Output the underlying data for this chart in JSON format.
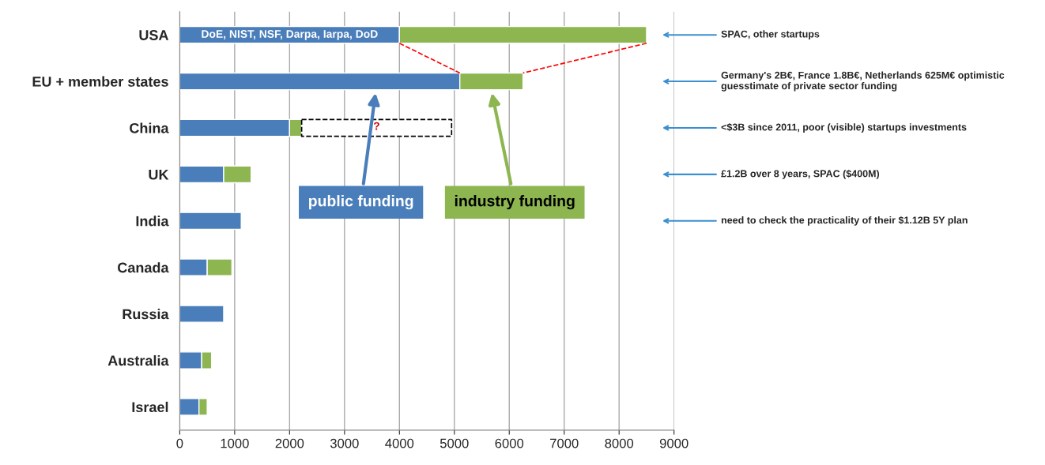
{
  "chart_data": {
    "type": "bar",
    "orientation": "horizontal",
    "stacked": true,
    "categories": [
      "USA",
      "EU + member states",
      "China",
      "UK",
      "India",
      "Canada",
      "Russia",
      "Australia",
      "Israel"
    ],
    "series": [
      {
        "name": "public funding",
        "color": "#4a7ebb",
        "values": [
          4000,
          5100,
          2000,
          800,
          1120,
          500,
          800,
          400,
          350
        ]
      },
      {
        "name": "industry funding",
        "color": "#8db651",
        "values": [
          4500,
          1150,
          220,
          500,
          null,
          450,
          null,
          180,
          150
        ]
      },
      {
        "color": "#ffffff",
        "line_style": "dashed",
        "values": [
          null,
          null,
          2730,
          null,
          null,
          null,
          null,
          null,
          null
        ]
      }
    ],
    "xlim": [
      0,
      9000
    ],
    "xticks": [
      0,
      1000,
      2000,
      3000,
      4000,
      5000,
      6000,
      7000,
      8000,
      9000
    ],
    "grid": "x",
    "legend": false,
    "annotations": [
      "DoE, NIST, NSF, Darpa, Iarpa, DoD",
      "?",
      "SPAC, other startups",
      "Germany's 2B€, France 1.8B€, Netherlands 625M€ optimistic guesstimate of private sector funding",
      "<$3B since 2011, poor (visible) startups investments",
      "£1.2B over 8 years, SPAC ($400M)",
      "need to check the practicality of their $1.12B 5Y plan"
    ]
  }
}
